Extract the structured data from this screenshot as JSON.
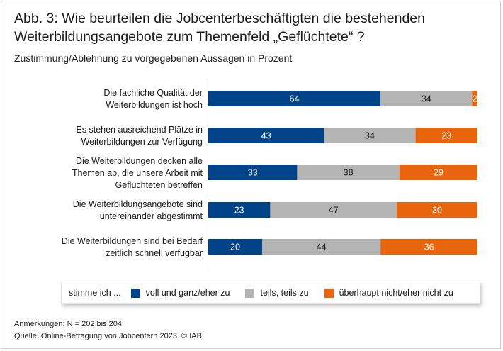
{
  "header": {
    "title": "Abb. 3: Wie beurteilen die Jobcenterbeschäftigten die bestehenden Weiterbildungsangebote zum Themenfeld „Geflüchtete“ ?",
    "subtitle": "Zustimmung/Ablehnung zu vorgegebenen Aussagen in Prozent"
  },
  "colors": {
    "blue": "#004388",
    "gray": "#b4b4b4",
    "orange": "#e8650e"
  },
  "chart_data": {
    "type": "bar",
    "orientation": "horizontal-stacked",
    "title": "Zustimmung/Ablehnung zu vorgegebenen Aussagen in Prozent",
    "xlim": [
      0,
      100
    ],
    "categories": [
      "Die fachliche Qualität der Weiterbildungen ist hoch",
      "Es stehen ausreichend Plätze in Weiterbildungen zur Verfügung",
      "Die Weiterbildungen decken alle Themen ab, die unsere Arbeit mit Geflüchteten betreffen",
      "Die Weiterbildungsangebote sind untereinander abgestimmt",
      "Die Weiterbildungen sind bei Bedarf zeitlich schnell verfügbar"
    ],
    "category_lines": [
      [
        "Die fachliche Qualität der",
        "Weiterbildungen ist hoch"
      ],
      [
        "Es stehen ausreichend Plätze in",
        "Weiterbildungen zur Verfügung"
      ],
      [
        "Die Weiterbildungen decken alle",
        "Themen ab, die unsere Arbeit mit",
        "Geflüchteten betreffen"
      ],
      [
        "Die Weiterbildungsangebote sind",
        "untereinander abgestimmt"
      ],
      [
        "Die Weiterbildungen sind bei Bedarf",
        "zeitlich schnell verfügbar"
      ]
    ],
    "series": [
      {
        "name": "voll und ganz/eher zu",
        "color": "#004388",
        "values": [
          64,
          43,
          33,
          23,
          20
        ]
      },
      {
        "name": "teils, teils zu",
        "color": "#b4b4b4",
        "values": [
          34,
          34,
          38,
          47,
          44
        ]
      },
      {
        "name": "überhaupt nicht/eher nicht zu",
        "color": "#e8650e",
        "values": [
          2,
          23,
          29,
          30,
          36
        ]
      }
    ],
    "legend": {
      "title": "stimme ich ...",
      "position": "bottom"
    }
  },
  "footer": {
    "note": "Anmerkungen: N = 202 bis 204",
    "source": "Quelle: Online-Befragung von Jobcentern 2023. © IAB"
  }
}
